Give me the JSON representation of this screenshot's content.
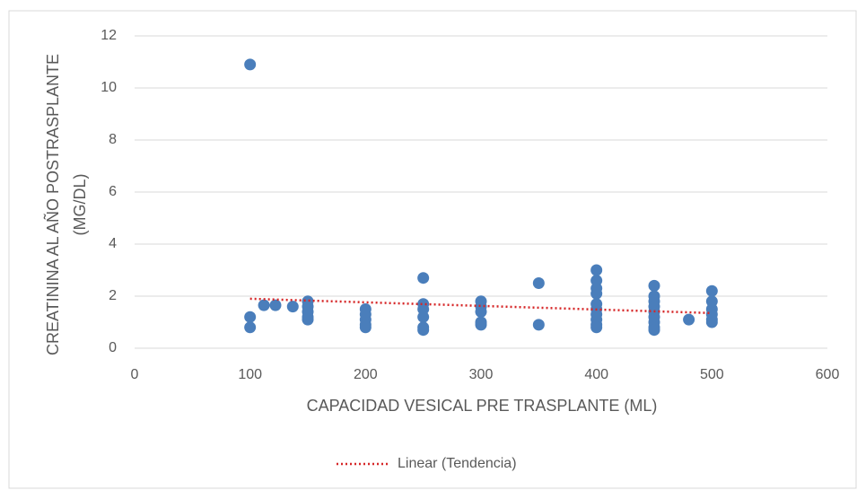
{
  "chart_data": {
    "type": "scatter",
    "xlabel": "CAPACIDAD VESICAL PRE TRASPLANTE (ML)",
    "ylabel": [
      "CREATININA AL AÑO POSTRASPLANTE",
      "(MG/DL)"
    ],
    "xlim": [
      0,
      600
    ],
    "xticks": [
      0,
      100,
      200,
      300,
      400,
      500,
      600
    ],
    "ylim": [
      0,
      12
    ],
    "yticks": [
      0,
      2,
      4,
      6,
      8,
      10,
      12
    ],
    "grid": true,
    "legend": "bottom",
    "series": [
      {
        "color": "#4a7ebb",
        "x": [
          100,
          100,
          100,
          112,
          122,
          137,
          150,
          150,
          150,
          150,
          150,
          200,
          200,
          200,
          200,
          200,
          250,
          250,
          250,
          250,
          250,
          250,
          300,
          300,
          300,
          300,
          300,
          350,
          350,
          400,
          400,
          400,
          400,
          400,
          400,
          400,
          400,
          400,
          400,
          450,
          450,
          450,
          450,
          450,
          450,
          450,
          450,
          450,
          480,
          500,
          500,
          500,
          500,
          500,
          500
        ],
        "values": [
          10.9,
          1.2,
          0.8,
          1.65,
          1.65,
          1.6,
          1.8,
          1.6,
          1.4,
          1.2,
          1.1,
          1.5,
          1.3,
          1.1,
          0.9,
          0.8,
          2.7,
          1.7,
          1.5,
          1.2,
          0.8,
          0.7,
          1.8,
          1.6,
          1.4,
          1.0,
          0.9,
          2.5,
          0.9,
          3.0,
          2.6,
          2.3,
          2.1,
          1.7,
          1.5,
          1.3,
          1.1,
          0.9,
          0.8,
          2.4,
          2.0,
          1.8,
          1.6,
          1.4,
          1.2,
          1.0,
          0.8,
          0.7,
          1.1,
          2.2,
          1.8,
          1.5,
          1.3,
          1.1,
          1.0
        ]
      }
    ],
    "trendline": {
      "name": "Linear (Tendencia)",
      "color": "#d62728",
      "style": "dotted",
      "x": [
        100,
        500
      ],
      "values": [
        1.9,
        1.35
      ]
    }
  }
}
